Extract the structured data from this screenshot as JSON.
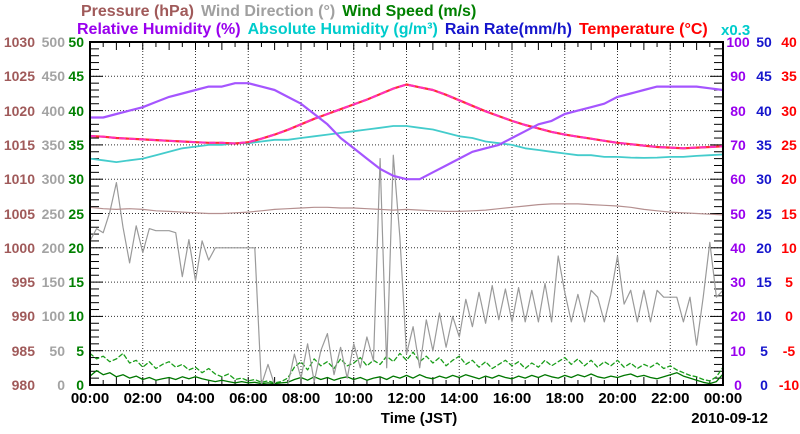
{
  "legend": {
    "row1": [
      {
        "label": "Pressure (hPa)",
        "color": "#a05a5a"
      },
      {
        "label": "Wind Direction (°)",
        "color": "#a0a0a0"
      },
      {
        "label": "Wind Speed (m/s)",
        "color": "#008000"
      }
    ],
    "row2": [
      {
        "label": "Relative Humidity (%)",
        "color": "#9900ee"
      },
      {
        "label": "Absolute Humidity (g/m³)",
        "color": "#00cccc"
      },
      {
        "label": "Rain Rate(mm/h)",
        "color": "#1515cc"
      },
      {
        "label": "Temperature (°C)",
        "color": "#ff0000"
      }
    ],
    "scale_note": {
      "label": "x0.3",
      "color": "#00cccc"
    }
  },
  "x_axis": {
    "title": "Time (JST)",
    "date": "2010-09-12",
    "tick_labels": [
      "00:00",
      "02:00",
      "04:00",
      "06:00",
      "08:00",
      "10:00",
      "12:00",
      "14:00",
      "16:00",
      "18:00",
      "20:00",
      "22:00",
      "00:00"
    ]
  },
  "left_axes": [
    {
      "name": "pressure",
      "color": "#a05a5a",
      "ticks": [
        "1030",
        "1025",
        "1020",
        "1015",
        "1010",
        "1005",
        "1000",
        "995",
        "990",
        "985",
        "980"
      ]
    },
    {
      "name": "wind-direction",
      "color": "#a3a3a3",
      "ticks": [
        "500",
        "450",
        "400",
        "350",
        "300",
        "250",
        "200",
        "150",
        "100",
        "50",
        "0"
      ]
    },
    {
      "name": "wind-speed",
      "color": "#008000",
      "ticks": [
        "50",
        "45",
        "40",
        "35",
        "30",
        "25",
        "20",
        "15",
        "10",
        "5",
        "0"
      ]
    }
  ],
  "right_axes": [
    {
      "name": "relative-humidity",
      "color": "#9900ee",
      "ticks": [
        "100",
        "90",
        "80",
        "70",
        "60",
        "50",
        "40",
        "30",
        "20",
        "10",
        "0"
      ]
    },
    {
      "name": "rain-rate",
      "color": "#1515cc",
      "ticks": [
        "50",
        "45",
        "40",
        "35",
        "30",
        "25",
        "20",
        "15",
        "10",
        "5",
        "0"
      ]
    },
    {
      "name": "temperature",
      "color": "#ff0000",
      "ticks": [
        "40",
        "35",
        "30",
        "25",
        "20",
        "15",
        "10",
        "5",
        "0",
        "-5",
        "-10"
      ]
    }
  ],
  "chart_data": {
    "type": "line",
    "x_unit": "hours JST on 2010-09-12",
    "x_range": [
      0,
      24
    ],
    "grid": "dotted, vertical every 2 h, horizontal every axis division",
    "legend_position": "above plot",
    "axes": {
      "rh": {
        "min": 0,
        "max": 100,
        "label": "Relative Humidity (%), Absolute Humidity plotted as g/m3 / 0.3"
      },
      "temp": {
        "min": -10,
        "max": 40,
        "label": "Temperature (°C)"
      },
      "press": {
        "min": 980,
        "max": 1030,
        "label": "Pressure (hPa)"
      },
      "dir": {
        "min": 0,
        "max": 500,
        "label": "Wind Direction (°)"
      },
      "speed": {
        "min": 0,
        "max": 50,
        "label": "Wind Speed (m/s)"
      },
      "rain": {
        "min": 0,
        "max": 50,
        "label": "Rain Rate (mm/h)"
      }
    },
    "series": [
      {
        "name": "wind-gust",
        "axis": "speed",
        "color": "#1a9e1a",
        "width": 1.3,
        "dash": "4,3",
        "start": 0,
        "step": 0.25,
        "values": [
          4.6,
          3.8,
          4.2,
          3.4,
          3.8,
          4.6,
          3.2,
          3.6,
          2.6,
          3.4,
          2.4,
          3.0,
          3.4,
          2.6,
          3.0,
          2.2,
          2.6,
          1.8,
          2.4,
          1.6,
          1.2,
          1.6,
          0.8,
          1.0,
          0.6,
          0.8,
          0.4,
          0.6,
          0.3,
          0.5,
          1.0,
          2.6,
          3.4,
          2.2,
          3.8,
          2.8,
          3.4,
          2.4,
          3.8,
          2.8,
          3.2,
          4.0,
          2.8,
          3.6,
          3.0,
          4.2,
          3.4,
          4.6,
          3.6,
          4.8,
          3.4,
          4.2,
          3.2,
          4.0,
          2.8,
          3.6,
          4.2,
          3.0,
          3.6,
          2.6,
          3.4,
          2.4,
          3.0,
          3.6,
          2.8,
          3.4,
          2.4,
          3.2,
          2.6,
          3.6,
          2.8,
          3.4,
          4.0,
          3.0,
          3.8,
          2.8,
          3.6,
          2.6,
          3.4,
          2.8,
          3.6,
          2.6,
          3.2,
          2.4,
          3.0,
          2.6,
          3.2,
          2.4,
          2.8,
          2.2,
          1.8,
          1.4,
          1.2,
          0.8,
          0.6,
          1.2,
          2.6
        ]
      },
      {
        "name": "wind-speed",
        "axis": "speed",
        "color": "#007700",
        "width": 1.3,
        "start": 0,
        "step": 0.25,
        "values": [
          1.3,
          2.1,
          1.5,
          1.8,
          1.2,
          1.5,
          1.0,
          1.3,
          0.8,
          1.1,
          0.7,
          0.9,
          1.1,
          0.8,
          1.2,
          0.9,
          1.2,
          0.9,
          0.7,
          0.5,
          0.7,
          0.5,
          0.3,
          0.5,
          0.3,
          0.4,
          0.2,
          0.3,
          0.2,
          0.3,
          0.4,
          0.8,
          1.1,
          0.7,
          1.2,
          0.8,
          1.1,
          0.7,
          1.0,
          1.2,
          0.8,
          1.1,
          0.7,
          1.0,
          1.2,
          0.8,
          1.3,
          1.0,
          1.4,
          1.0,
          1.5,
          1.1,
          0.9,
          1.3,
          1.0,
          1.4,
          1.1,
          1.5,
          1.2,
          0.9,
          1.3,
          1.0,
          1.4,
          1.1,
          0.9,
          1.3,
          1.0,
          1.4,
          1.1,
          1.5,
          1.2,
          1.0,
          1.4,
          1.1,
          1.5,
          1.2,
          1.6,
          1.2,
          1.0,
          1.3,
          1.1,
          1.4,
          1.6,
          1.2,
          1.4,
          1.1,
          0.9,
          1.2,
          1.5,
          1.8,
          1.3,
          1.0,
          0.7,
          0.4,
          0.2,
          0.5,
          1.6
        ]
      },
      {
        "name": "wind-direction",
        "axis": "dir",
        "color": "#9a9a9a",
        "width": 1.2,
        "start": 0,
        "step": 0.25,
        "values": [
          210,
          228,
          222,
          252,
          295,
          230,
          178,
          232,
          193,
          228,
          225,
          225,
          225,
          222,
          158,
          212,
          152,
          210,
          182,
          200,
          200,
          200,
          200,
          200,
          200,
          200,
          0,
          30,
          0,
          0,
          0,
          45,
          10,
          60,
          5,
          50,
          75,
          15,
          55,
          10,
          60,
          25,
          70,
          35,
          330,
          25,
          335,
          215,
          45,
          85,
          25,
          95,
          50,
          105,
          55,
          100,
          70,
          125,
          85,
          135,
          90,
          145,
          95,
          140,
          92,
          142,
          92,
          138,
          92,
          148,
          92,
          188,
          135,
          92,
          132,
          92,
          138,
          128,
          92,
          132,
          188,
          118,
          138,
          92,
          138,
          92,
          138,
          128,
          128,
          128,
          92,
          128,
          58,
          128,
          208,
          128,
          138
        ]
      },
      {
        "name": "pressure",
        "axis": "press",
        "color": "#b59090",
        "width": 1.2,
        "start": 0,
        "step": 0.5,
        "values": [
          1005.9,
          1005.7,
          1005.6,
          1005.7,
          1005.6,
          1005.4,
          1005.3,
          1005.2,
          1005.1,
          1005.0,
          1005.0,
          1005.1,
          1005.2,
          1005.4,
          1005.6,
          1005.7,
          1005.8,
          1005.9,
          1005.9,
          1005.8,
          1005.8,
          1005.7,
          1005.6,
          1005.5,
          1005.6,
          1005.5,
          1005.4,
          1005.3,
          1005.3,
          1005.4,
          1005.5,
          1005.7,
          1005.9,
          1006.1,
          1006.3,
          1006.4,
          1006.4,
          1006.4,
          1006.3,
          1006.2,
          1006.1,
          1005.9,
          1005.6,
          1005.4,
          1005.2,
          1005.1,
          1005.0,
          1004.9,
          1004.8
        ]
      },
      {
        "name": "rain-rate",
        "axis": "rain",
        "color": "#4444bb",
        "width": 2,
        "start": 0,
        "step": 24,
        "values": [
          0,
          0
        ]
      },
      {
        "name": "absolute-humidity",
        "axis": "rh",
        "color": "#44cccc",
        "width": 1.8,
        "note": "plotted on 0-100 axis, read g/m3 by multiplying by 0.3",
        "start": 0,
        "step": 0.5,
        "values": [
          66,
          65.5,
          65,
          65.5,
          66,
          67,
          68,
          69,
          69.5,
          70,
          70,
          70.5,
          70.5,
          71,
          71.5,
          71.5,
          72,
          72.5,
          73,
          73.5,
          74,
          74.5,
          75,
          75.5,
          75.5,
          75,
          74.5,
          73.5,
          72.5,
          72,
          71,
          70.5,
          70,
          69,
          68.5,
          68,
          67.5,
          67,
          67,
          66.5,
          66.5,
          66.3,
          66.2,
          66.3,
          66.5,
          66.5,
          66.8,
          67,
          67.2
        ]
      },
      {
        "name": "temperature",
        "axis": "temp",
        "color": "#ff3030",
        "width": 2.2,
        "start": 0,
        "step": 0.5,
        "values": [
          26.3,
          26.2,
          26.0,
          25.9,
          25.8,
          25.7,
          25.6,
          25.5,
          25.4,
          25.3,
          25.3,
          25.2,
          25.4,
          25.9,
          26.5,
          27.2,
          28.0,
          28.8,
          29.5,
          30.2,
          30.9,
          31.6,
          32.4,
          33.2,
          33.8,
          33.4,
          33.0,
          32.3,
          31.5,
          30.7,
          29.9,
          29.2,
          28.5,
          27.9,
          27.4,
          26.9,
          26.5,
          26.2,
          25.9,
          25.6,
          25.3,
          25.1,
          24.9,
          24.7,
          24.6,
          24.5,
          24.6,
          24.7,
          24.8
        ]
      },
      {
        "name": "temperature-overlay",
        "axis": "temp",
        "color": "#ff30c0",
        "width": 2,
        "dash": "5,5",
        "start": 0,
        "step": 0.5,
        "values_ref": "temperature"
      },
      {
        "name": "relative-humidity",
        "axis": "rh",
        "color": "#a555ff",
        "width": 2.2,
        "start": 0,
        "step": 0.5,
        "values": [
          78,
          78,
          79,
          80,
          81,
          82.5,
          84,
          85,
          86,
          87,
          87,
          88,
          88,
          87,
          86,
          84,
          82,
          79,
          76,
          72,
          69,
          66,
          63,
          61,
          60,
          60,
          62,
          64,
          66,
          68,
          69,
          70,
          72,
          74,
          76,
          77,
          79,
          80,
          81,
          82,
          84,
          85,
          86,
          87,
          87,
          87,
          87,
          86.5,
          86
        ]
      }
    ]
  }
}
